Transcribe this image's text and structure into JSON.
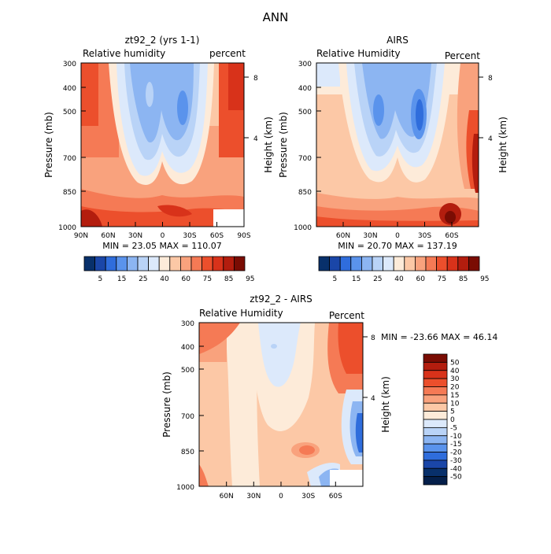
{
  "page_title": "ANN",
  "chart_data": [
    {
      "id": "model",
      "type": "heatmap",
      "title": "zt92_2 (yrs 1-1)",
      "left_label": "Relative humidity",
      "right_label": "percent",
      "ylabel": "Pressure (mb)",
      "y2label": "Height (km)",
      "x_ticks": [
        "90N",
        "60N",
        "30N",
        "0",
        "30S",
        "60S",
        "90S"
      ],
      "y_ticks": [
        "300",
        "400",
        "500",
        "700",
        "850",
        "1000"
      ],
      "y2_ticks": [
        "8",
        "4"
      ],
      "xlim": [
        90,
        -90
      ],
      "ylim": [
        300,
        1000
      ],
      "minmax_text": "MIN =  23.05   MAX = 110.07",
      "min": 23.05,
      "max": 110.07,
      "colorbar": {
        "levels": [
          "5",
          "15",
          "25",
          "40",
          "60",
          "75",
          "85",
          "95"
        ],
        "colors": [
          "#08306b",
          "#1a46a8",
          "#2f6ddc",
          "#5a93ec",
          "#8cb5f2",
          "#b9d3f7",
          "#dce9fb",
          "#fdebd9",
          "#fcc8a6",
          "#f9a27d",
          "#f57a55",
          "#ec4f2c",
          "#d8321a",
          "#b31d0e",
          "#7a0c03"
        ]
      }
    },
    {
      "id": "obs",
      "type": "heatmap",
      "title": "AIRS",
      "left_label": "Relative Humidity",
      "right_label": "Percent",
      "ylabel": "Pressure (mb)",
      "y2label": "Height (km)",
      "x_ticks": [
        "60N",
        "30N",
        "0",
        "30S",
        "60S"
      ],
      "y_ticks": [
        "300",
        "400",
        "500",
        "700",
        "850",
        "1000"
      ],
      "y2_ticks": [
        "8",
        "4"
      ],
      "xlim": [
        90,
        -90
      ],
      "ylim": [
        300,
        1000
      ],
      "minmax_text": "MIN =  20.70   MAX = 137.19",
      "min": 20.7,
      "max": 137.19,
      "colorbar": {
        "levels": [
          "5",
          "15",
          "25",
          "40",
          "60",
          "75",
          "85",
          "95"
        ],
        "colors": [
          "#08306b",
          "#1a46a8",
          "#2f6ddc",
          "#5a93ec",
          "#8cb5f2",
          "#b9d3f7",
          "#dce9fb",
          "#fdebd9",
          "#fcc8a6",
          "#f9a27d",
          "#f57a55",
          "#ec4f2c",
          "#d8321a",
          "#b31d0e",
          "#7a0c03"
        ]
      }
    },
    {
      "id": "diff",
      "type": "heatmap",
      "title": "zt92_2 - AIRS",
      "left_label": "Relative Humidity",
      "right_label": "Percent",
      "ylabel": "Pressure (mb)",
      "y2label": "Height (km)",
      "x_ticks": [
        "60N",
        "30N",
        "0",
        "30S",
        "60S"
      ],
      "y_ticks": [
        "300",
        "400",
        "500",
        "700",
        "850",
        "1000"
      ],
      "y2_ticks": [
        "8",
        "4"
      ],
      "xlim": [
        90,
        -90
      ],
      "ylim": [
        300,
        1000
      ],
      "minmax_text": "MIN = -23.66   MAX =  46.14",
      "min": -23.66,
      "max": 46.14,
      "colorbar": {
        "levels": [
          "50",
          "40",
          "30",
          "20",
          "15",
          "10",
          "5",
          "0",
          "-5",
          "-10",
          "-15",
          "-20",
          "-30",
          "-40",
          "-50"
        ],
        "colors": [
          "#7a0c03",
          "#b31d0e",
          "#d8321a",
          "#ec4f2c",
          "#f57a55",
          "#f9a27d",
          "#fcc8a6",
          "#fdebd9",
          "#dce9fb",
          "#b9d3f7",
          "#8cb5f2",
          "#5a93ec",
          "#2f6ddc",
          "#1a46a8",
          "#08306b",
          "#041f4a"
        ]
      }
    }
  ]
}
